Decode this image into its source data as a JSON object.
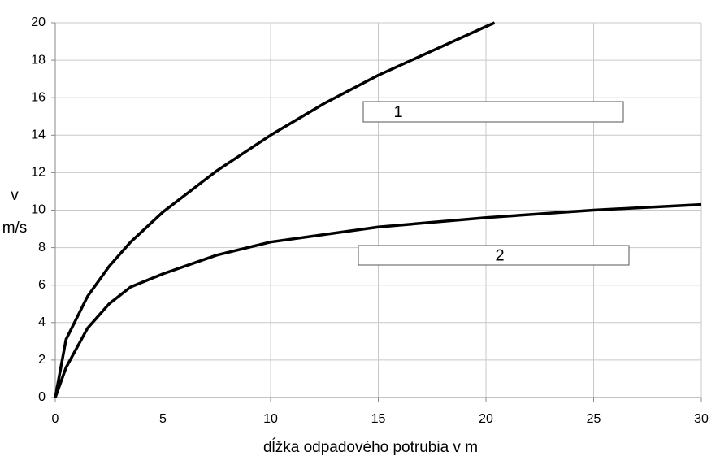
{
  "chart_data": {
    "type": "line",
    "x_label": "dĺžka odpadového potrubia v m",
    "y_label": [
      "v",
      "m/s"
    ],
    "series": [
      {
        "name": "1",
        "color": "#000000",
        "x": [
          0,
          0.5,
          1.5,
          2.5,
          3.5,
          5,
          7.5,
          10,
          12.5,
          15,
          17.5,
          20,
          20.4
        ],
        "values": [
          0,
          3.1,
          5.4,
          7.0,
          8.3,
          9.9,
          12.1,
          14.0,
          15.7,
          17.2,
          18.5,
          19.8,
          20
        ]
      },
      {
        "name": "2",
        "color": "#000000",
        "x": [
          0,
          0.5,
          1.5,
          2.5,
          3.5,
          5,
          7.5,
          10,
          15,
          20,
          25,
          30
        ],
        "values": [
          0,
          1.6,
          3.7,
          5.0,
          5.9,
          6.6,
          7.6,
          8.3,
          9.1,
          9.6,
          10.0,
          10.3
        ]
      }
    ],
    "xlim": [
      0,
      30
    ],
    "xticks": [
      0,
      5,
      10,
      15,
      20,
      25,
      30
    ],
    "ylim": [
      0,
      20
    ],
    "yticks": [
      0,
      2,
      4,
      6,
      8,
      10,
      12,
      14,
      16,
      18,
      20
    ],
    "grid": true
  }
}
